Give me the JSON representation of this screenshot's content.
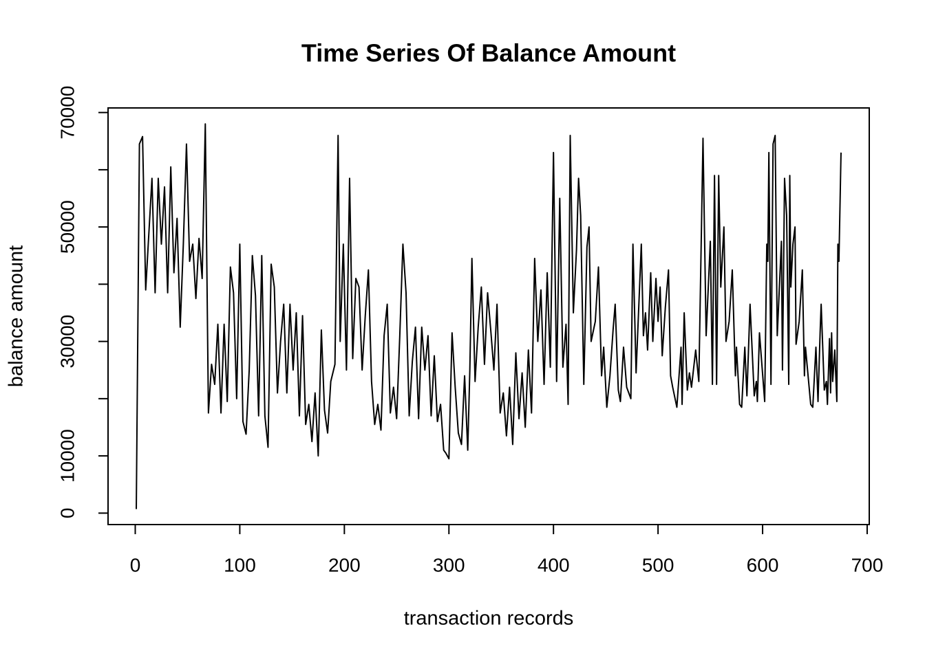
{
  "chart_data": {
    "type": "line",
    "title": "Time Series Of Balance Amount",
    "xlabel": "transaction records",
    "ylabel": "balance amount",
    "color": "#000000",
    "grid": false,
    "xlim": [
      -26,
      702
    ],
    "ylim": [
      -2000,
      70800
    ],
    "xticks": [
      0,
      100,
      200,
      300,
      400,
      500,
      600,
      700
    ],
    "yticks": [
      0,
      10000,
      20000,
      30000,
      40000,
      50000,
      60000,
      70000
    ],
    "x": [
      1,
      4,
      7,
      10,
      13,
      16,
      19,
      22,
      25,
      28,
      31,
      34,
      37,
      40,
      43,
      46,
      49,
      52,
      55,
      58,
      61,
      64,
      67,
      70,
      73,
      76,
      79,
      82,
      85,
      88,
      91,
      94,
      97,
      100,
      103,
      106,
      109,
      112,
      115,
      118,
      121,
      124,
      127,
      130,
      133,
      136,
      139,
      142,
      145,
      148,
      151,
      154,
      157,
      160,
      163,
      166,
      169,
      172,
      175,
      178,
      181,
      184,
      187,
      191,
      194,
      196,
      199,
      202,
      205,
      208,
      211,
      214,
      217,
      220,
      223,
      226,
      229,
      232,
      235,
      238,
      241,
      244,
      247,
      250,
      253,
      256,
      259,
      262,
      265,
      268,
      271,
      274,
      277,
      280,
      283,
      286,
      289,
      292,
      295,
      297,
      300,
      303,
      306,
      309,
      312,
      315,
      318,
      320,
      322,
      325,
      328,
      331,
      334,
      337,
      340,
      343,
      346,
      349,
      352,
      355,
      358,
      361,
      364,
      367,
      370,
      373,
      376,
      379,
      382,
      385,
      388,
      391,
      394,
      397,
      400,
      403,
      406,
      409,
      412,
      414,
      416,
      419,
      422,
      424,
      426,
      429,
      432,
      434,
      436,
      440,
      443,
      446,
      448,
      451,
      454,
      457,
      459,
      462,
      464,
      467,
      470,
      474,
      476,
      479,
      484,
      486,
      488,
      490,
      493,
      495,
      498,
      500,
      502,
      504,
      507,
      510,
      512,
      514,
      518,
      522,
      523,
      525,
      528,
      530,
      532,
      536,
      539,
      543,
      546,
      550,
      552,
      554,
      556,
      558,
      560,
      563,
      565,
      568,
      571,
      574,
      575,
      578,
      580,
      583,
      585,
      588,
      592,
      594,
      595,
      597,
      602,
      604,
      605,
      606,
      608,
      610,
      612,
      614,
      618,
      619,
      621,
      623,
      625,
      626,
      627,
      629,
      631,
      632,
      635,
      638,
      640,
      641,
      646,
      648,
      651,
      653,
      655,
      656,
      659,
      661,
      662,
      664,
      665,
      666,
      667,
      669,
      671,
      672,
      673,
      675
    ],
    "values": [
      700,
      64500,
      65800,
      39000,
      48800,
      58500,
      38500,
      58500,
      47000,
      57000,
      38500,
      60500,
      42000,
      51500,
      32500,
      47000,
      64500,
      44000,
      47000,
      37500,
      48000,
      41000,
      68000,
      17500,
      26000,
      22500,
      33000,
      17500,
      33000,
      19500,
      43000,
      38500,
      20000,
      47000,
      16000,
      13800,
      25000,
      45000,
      38000,
      17000,
      45000,
      17000,
      11500,
      43500,
      39500,
      21000,
      30000,
      36500,
      21000,
      36500,
      25000,
      35000,
      17000,
      34500,
      15500,
      19000,
      12500,
      21000,
      10000,
      32000,
      18000,
      14000,
      23000,
      26000,
      66000,
      30000,
      47000,
      25000,
      58500,
      27000,
      41000,
      39500,
      25000,
      34500,
      42500,
      23000,
      15500,
      19000,
      14500,
      31000,
      36500,
      17500,
      22000,
      16500,
      31000,
      47000,
      38500,
      17000,
      26500,
      32500,
      16500,
      32500,
      25000,
      31000,
      17000,
      27500,
      16000,
      19000,
      11000,
      10500,
      9500,
      31500,
      22000,
      14000,
      12000,
      24000,
      11000,
      25000,
      44500,
      23000,
      32500,
      39500,
      26000,
      38500,
      32000,
      25000,
      36500,
      17500,
      21000,
      13500,
      22000,
      12000,
      28000,
      16500,
      24500,
      15000,
      28500,
      17500,
      44500,
      30000,
      39000,
      22500,
      42000,
      25500,
      63000,
      23000,
      55000,
      25500,
      33000,
      19000,
      66000,
      35000,
      46000,
      58500,
      52000,
      22500,
      46500,
      50000,
      30000,
      33500,
      43000,
      24000,
      29000,
      18500,
      24000,
      32000,
      36500,
      21500,
      19500,
      29000,
      22000,
      20000,
      47000,
      24500,
      47000,
      31000,
      35000,
      28500,
      42000,
      30000,
      41000,
      33500,
      39500,
      27500,
      36000,
      42500,
      24000,
      22000,
      18500,
      29000,
      19000,
      35000,
      21500,
      24500,
      22000,
      28500,
      23000,
      65500,
      31000,
      47500,
      22500,
      59000,
      22500,
      59000,
      39500,
      50000,
      30000,
      33500,
      42500,
      24000,
      29000,
      19000,
      18500,
      29000,
      20500,
      36500,
      20500,
      23000,
      19500,
      31500,
      19500,
      47000,
      44000,
      63000,
      22500,
      64500,
      66000,
      31000,
      47500,
      25000,
      58500,
      52000,
      22500,
      59000,
      39500,
      47000,
      50000,
      29500,
      33500,
      42500,
      24000,
      29000,
      19000,
      18500,
      29000,
      19500,
      31500,
      36500,
      21500,
      23000,
      19000,
      30500,
      21000,
      31500,
      23000,
      28500,
      19500,
      47000,
      44000,
      63000
    ]
  }
}
